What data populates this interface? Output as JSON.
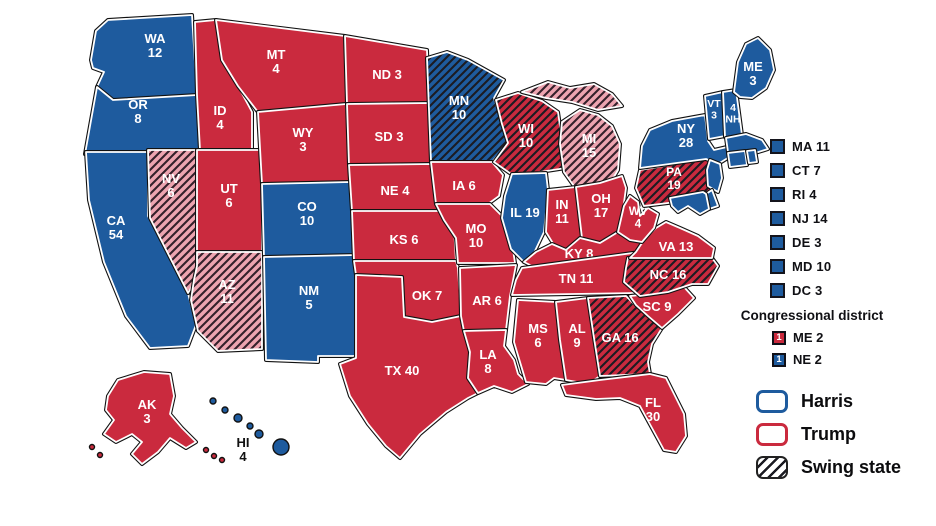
{
  "colors": {
    "harris": "#1e5b9e",
    "trump": "#ca2a3e",
    "lean_trump": "#edA4b0",
    "hatch_dark": "#1b1b22",
    "map_outline": "#111111",
    "label_light": "#ffffff",
    "label_dark": "#111111",
    "legend_swing_border": "#222222"
  },
  "map": {
    "states": [
      {
        "id": "WA",
        "abbr": "WA",
        "votes": "12",
        "party": "harris",
        "swing": false
      },
      {
        "id": "OR",
        "abbr": "OR",
        "votes": "8",
        "party": "harris",
        "swing": false
      },
      {
        "id": "CA",
        "abbr": "CA",
        "votes": "54",
        "party": "harris",
        "swing": false
      },
      {
        "id": "NV",
        "abbr": "NV",
        "votes": "6",
        "party": "lean_trump",
        "swing": true
      },
      {
        "id": "ID",
        "abbr": "ID",
        "votes": "4",
        "party": "trump",
        "swing": false
      },
      {
        "id": "UT",
        "abbr": "UT",
        "votes": "6",
        "party": "trump",
        "swing": false
      },
      {
        "id": "AZ",
        "abbr": "AZ",
        "votes": "11",
        "party": "lean_trump",
        "swing": true
      },
      {
        "id": "MT",
        "abbr": "MT",
        "votes": "4",
        "party": "trump",
        "swing": false
      },
      {
        "id": "WY",
        "abbr": "WY",
        "votes": "3",
        "party": "trump",
        "swing": false
      },
      {
        "id": "CO",
        "abbr": "CO",
        "votes": "10",
        "party": "harris",
        "swing": false
      },
      {
        "id": "NM",
        "abbr": "NM",
        "votes": "5",
        "party": "harris",
        "swing": false
      },
      {
        "id": "ND",
        "abbr": "ND",
        "votes": "3",
        "party": "trump",
        "swing": false
      },
      {
        "id": "SD",
        "abbr": "SD",
        "votes": "3",
        "party": "trump",
        "swing": false
      },
      {
        "id": "NE",
        "abbr": "NE",
        "votes": "4",
        "party": "trump",
        "swing": false
      },
      {
        "id": "KS",
        "abbr": "KS",
        "votes": "6",
        "party": "trump",
        "swing": false
      },
      {
        "id": "OK",
        "abbr": "OK",
        "votes": "7",
        "party": "trump",
        "swing": false
      },
      {
        "id": "TX",
        "abbr": "TX",
        "votes": "40",
        "party": "trump",
        "swing": false
      },
      {
        "id": "MN",
        "abbr": "MN",
        "votes": "10",
        "party": "harris",
        "swing": true
      },
      {
        "id": "IA",
        "abbr": "IA",
        "votes": "6",
        "party": "trump",
        "swing": false
      },
      {
        "id": "MO",
        "abbr": "MO",
        "votes": "10",
        "party": "trump",
        "swing": false
      },
      {
        "id": "AR",
        "abbr": "AR",
        "votes": "6",
        "party": "trump",
        "swing": false
      },
      {
        "id": "LA",
        "abbr": "LA",
        "votes": "8",
        "party": "trump",
        "swing": false
      },
      {
        "id": "WI",
        "abbr": "WI",
        "votes": "10",
        "party": "trump",
        "swing": true
      },
      {
        "id": "IL",
        "abbr": "IL",
        "votes": "19",
        "party": "harris",
        "swing": false
      },
      {
        "id": "MI",
        "abbr": "MI",
        "votes": "15",
        "party": "lean_trump",
        "swing": true
      },
      {
        "id": "IN",
        "abbr": "IN",
        "votes": "11",
        "party": "trump",
        "swing": false
      },
      {
        "id": "OH",
        "abbr": "OH",
        "votes": "17",
        "party": "trump",
        "swing": false
      },
      {
        "id": "KY",
        "abbr": "KY",
        "votes": "8",
        "party": "trump",
        "swing": false
      },
      {
        "id": "TN",
        "abbr": "TN",
        "votes": "11",
        "party": "trump",
        "swing": false
      },
      {
        "id": "MS",
        "abbr": "MS",
        "votes": "6",
        "party": "trump",
        "swing": false
      },
      {
        "id": "AL",
        "abbr": "AL",
        "votes": "9",
        "party": "trump",
        "swing": false
      },
      {
        "id": "GA",
        "abbr": "GA",
        "votes": "16",
        "party": "trump",
        "swing": true
      },
      {
        "id": "FL",
        "abbr": "FL",
        "votes": "30",
        "party": "trump",
        "swing": false
      },
      {
        "id": "SC",
        "abbr": "SC",
        "votes": "9",
        "party": "trump",
        "swing": false
      },
      {
        "id": "NC",
        "abbr": "NC",
        "votes": "16",
        "party": "trump",
        "swing": true
      },
      {
        "id": "VA",
        "abbr": "VA",
        "votes": "13",
        "party": "trump",
        "swing": false
      },
      {
        "id": "WV",
        "abbr": "WV",
        "votes": "4",
        "party": "trump",
        "swing": false
      },
      {
        "id": "PA",
        "abbr": "PA",
        "votes": "19",
        "party": "trump",
        "swing": true
      },
      {
        "id": "NY",
        "abbr": "NY",
        "votes": "28",
        "party": "harris",
        "swing": false
      },
      {
        "id": "VT",
        "abbr": "VT",
        "votes": "3",
        "party": "harris",
        "swing": false
      },
      {
        "id": "NH",
        "abbr": "NH",
        "votes": "4",
        "party": "harris",
        "swing": false
      },
      {
        "id": "ME",
        "abbr": "ME",
        "votes": "3",
        "party": "harris",
        "swing": false
      },
      {
        "id": "MA",
        "abbr": "MA",
        "party": "harris",
        "swing": false
      },
      {
        "id": "CT",
        "abbr": "CT",
        "party": "harris",
        "swing": false
      },
      {
        "id": "RI",
        "abbr": "RI",
        "party": "harris",
        "swing": false
      },
      {
        "id": "NJ",
        "abbr": "NJ",
        "party": "harris",
        "swing": false
      },
      {
        "id": "DE",
        "abbr": "DE",
        "party": "harris",
        "swing": false
      },
      {
        "id": "MD",
        "abbr": "MD",
        "party": "harris",
        "swing": false
      },
      {
        "id": "AK",
        "abbr": "AK",
        "votes": "3",
        "party": "trump",
        "swing": false
      },
      {
        "id": "HI",
        "abbr": "HI",
        "votes": "4",
        "party": "harris",
        "swing": false
      }
    ]
  },
  "small_states_list": {
    "items": [
      {
        "label": "MA 11",
        "party": "harris"
      },
      {
        "label": "CT 7",
        "party": "harris"
      },
      {
        "label": "RI 4",
        "party": "harris"
      },
      {
        "label": "NJ 14",
        "party": "harris"
      },
      {
        "label": "DE 3",
        "party": "harris"
      },
      {
        "label": "MD 10",
        "party": "harris"
      },
      {
        "label": "DC 3",
        "party": "harris"
      }
    ]
  },
  "congressional": {
    "title": "Congressional district",
    "items": [
      {
        "label": "ME 2",
        "badge": "1",
        "party": "trump"
      },
      {
        "label": "NE 2",
        "badge": "1",
        "party": "harris"
      }
    ]
  },
  "legend": {
    "items": [
      {
        "label": "Harris",
        "style": "harris"
      },
      {
        "label": "Trump",
        "style": "trump"
      },
      {
        "label": "Swing state",
        "style": "swing"
      }
    ]
  }
}
